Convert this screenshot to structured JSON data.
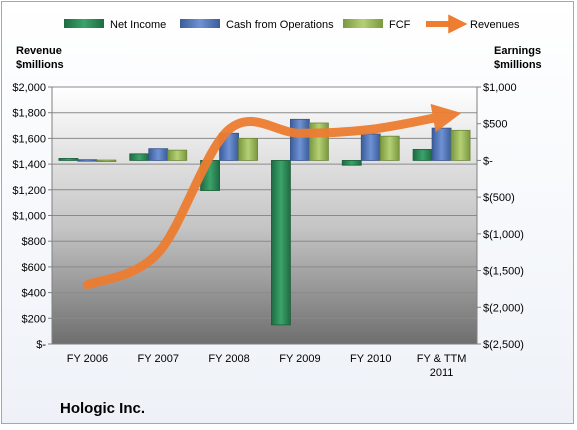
{
  "chart_data": {
    "type": "bar",
    "title": "Hologic Inc.",
    "categories": [
      "FY 2006",
      "FY 2007",
      "FY 2008",
      "FY 2009",
      "FY 2010",
      "FY & TTM 2011"
    ],
    "left_axis": {
      "label": [
        "Revenue",
        "$millions"
      ],
      "ticks": [
        "$-",
        "$200",
        "$400",
        "$600",
        "$800",
        "$1,000",
        "$1,200",
        "$1,400",
        "$1,600",
        "$1,800",
        "$2,000"
      ],
      "range": [
        0,
        2000
      ]
    },
    "right_axis": {
      "label": [
        "Earnings",
        "$millions"
      ],
      "ticks": [
        "$(2,500)",
        "$(2,000)",
        "$(1,500)",
        "$(1,000)",
        "$(500)",
        "$-",
        "$500",
        "$1,000"
      ],
      "range": [
        -2500,
        1000
      ]
    },
    "series": [
      {
        "name": "Net Income",
        "axis": "right",
        "color": "#2e8b57",
        "values": [
          27,
          90,
          -410,
          -2240,
          -65,
          150
        ]
      },
      {
        "name": "Cash from Operations",
        "axis": "right",
        "color": "#4f74b8",
        "values": [
          10,
          160,
          370,
          560,
          360,
          440
        ]
      },
      {
        "name": "FCF",
        "axis": "right",
        "color": "#98b954",
        "values": [
          5,
          140,
          300,
          510,
          330,
          410
        ]
      },
      {
        "name": "Revenues",
        "axis": "left",
        "color": "#ed7d31",
        "type": "line",
        "values": [
          460,
          710,
          1670,
          1640,
          1670,
          1770
        ]
      }
    ],
    "grid": true,
    "legend": "top"
  }
}
